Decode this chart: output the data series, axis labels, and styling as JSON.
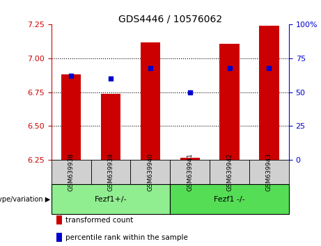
{
  "title": "GDS4446 / 10576062",
  "categories": [
    "GSM639938",
    "GSM639939",
    "GSM639940",
    "GSM639941",
    "GSM639942",
    "GSM639943"
  ],
  "bar_values": [
    6.88,
    6.74,
    7.12,
    6.265,
    7.11,
    7.24
  ],
  "bar_bottom": 6.25,
  "percentile_values": [
    62,
    60,
    68,
    50,
    68,
    68
  ],
  "ylim_left": [
    6.25,
    7.25
  ],
  "ylim_right": [
    0,
    100
  ],
  "yticks_left": [
    6.25,
    6.5,
    6.75,
    7.0,
    7.25
  ],
  "yticks_right": [
    0,
    25,
    50,
    75,
    100
  ],
  "bar_color": "#cc0000",
  "dot_color": "#0000cc",
  "bg_color": "#ffffff",
  "left_axis_color": "#cc0000",
  "right_axis_color": "#0000cc",
  "groups": [
    {
      "label": "Fezf1+/-",
      "indices": [
        0,
        1,
        2
      ],
      "color": "#90ee90"
    },
    {
      "label": "Fezf1 -/-",
      "indices": [
        3,
        4,
        5
      ],
      "color": "#55dd55"
    }
  ],
  "group_label_prefix": "genotype/variation",
  "legend_items": [
    {
      "label": "transformed count",
      "color": "#cc0000"
    },
    {
      "label": "percentile rank within the sample",
      "color": "#0000cc"
    }
  ],
  "figsize": [
    4.61,
    3.54
  ],
  "dpi": 100
}
